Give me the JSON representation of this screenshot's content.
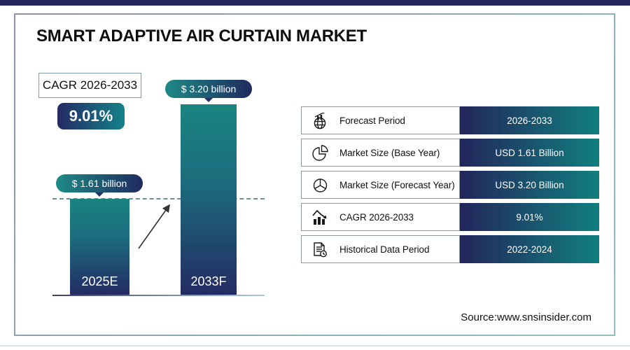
{
  "header": {
    "title": "SMART ADAPTIVE AIR CURTAIN MARKET"
  },
  "cagr": {
    "box_label": "CAGR 2026-2033",
    "value": "9.01%"
  },
  "chart_data": {
    "type": "bar",
    "categories": [
      "2025E",
      "2033F"
    ],
    "values": [
      1.61,
      3.2
    ],
    "value_labels": [
      "$ 1.61 billion",
      "$ 3.20 billion"
    ],
    "unit": "USD billion",
    "ylim": [
      0,
      3.6
    ],
    "title": "SMART ADAPTIVE AIR CURTAIN MARKET",
    "xlabel": "",
    "ylabel": "",
    "grid": false,
    "legend": false,
    "annotations": {
      "cagr_label": "CAGR 2026-2033",
      "cagr_value": "9.01%",
      "trend_arrow": "up",
      "dashed_reference_level": 1.61
    }
  },
  "facts": {
    "rows": [
      {
        "icon": "globe-growth-icon",
        "label": "Forecast Period",
        "value": "2026-2033"
      },
      {
        "icon": "pie-chart-icon",
        "label": "Market Size (Base Year)",
        "value": "USD 1.61 Billion"
      },
      {
        "icon": "pie-chart-exploded-icon",
        "label": "Market Size (Forecast Year)",
        "value": "USD 3.20 Billion"
      },
      {
        "icon": "bar-trend-icon",
        "label": "CAGR 2026-2033",
        "value": "9.01%"
      },
      {
        "icon": "document-clock-icon",
        "label": "Historical Data Period",
        "value": "2022-2024"
      }
    ]
  },
  "footer": {
    "source": "Source:www.snsinsider.com"
  },
  "colors": {
    "navy": "#23265d",
    "teal": "#14828a",
    "bar_gradient_top": "#1a8480",
    "bar_gradient_bottom": "#232b63",
    "frame_border_start": "#8d90aa",
    "frame_border_end": "#8fc2ba",
    "text": "#0d0d0d",
    "value_text": "#ffffff"
  }
}
